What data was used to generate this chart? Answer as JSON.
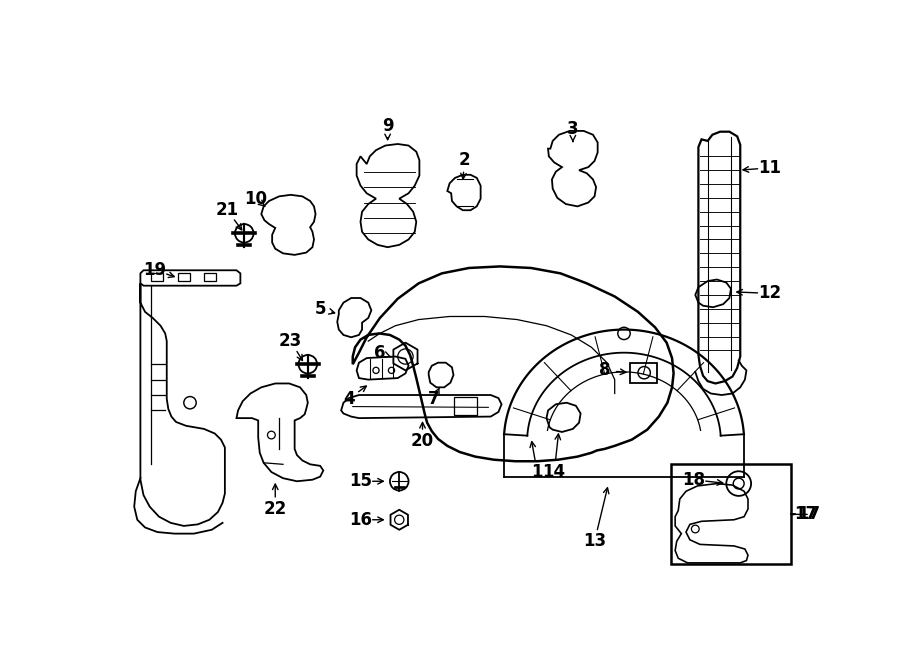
{
  "bg_color": "#ffffff",
  "lc": "#000000",
  "lw": 1.3,
  "fig_width": 9.0,
  "fig_height": 6.61,
  "dpi": 100
}
